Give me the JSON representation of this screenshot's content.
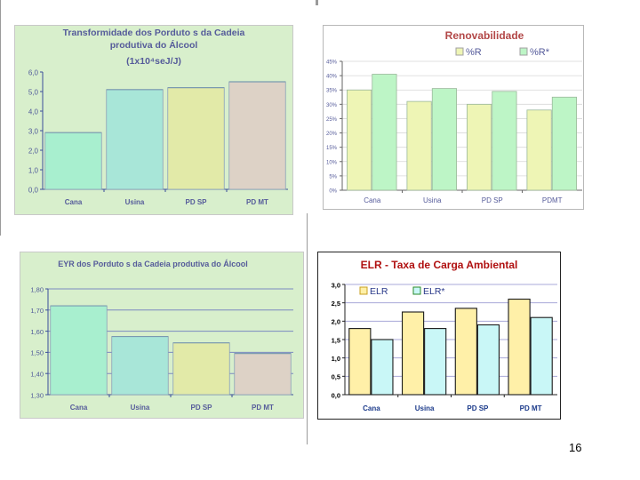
{
  "page_number": "16",
  "charts": {
    "p1": {
      "title_lines": [
        "Transformidade  dos Porduto s da Cadeia",
        "produtiva do Álcool",
        "(1x10⁴seJ/J)"
      ],
      "y_ticks": [
        "6,0",
        "5,0",
        "4,0",
        "3,0",
        "2,0",
        "1,0",
        "0,0"
      ],
      "categories": [
        "Cana",
        "Usina",
        "PD SP",
        "PD MT"
      ]
    },
    "p2": {
      "title_lines": [
        "Renovabilidade"
      ],
      "legend": [
        "%R",
        "%R*"
      ],
      "y_ticks": [
        "45%",
        "40%",
        "35%",
        "30%",
        "25%",
        "20%",
        "15%",
        "10%",
        "5%",
        "0%"
      ],
      "categories": [
        "Cana",
        "Usina",
        "PD SP",
        "PDMT"
      ]
    },
    "p3": {
      "title_lines": [
        "EYR dos  Porduto s da Cadeia produtiva do Álcool"
      ],
      "y_ticks": [
        "1,80",
        "1,70",
        "1,60",
        "1,50",
        "1,40",
        "1,30"
      ],
      "categories": [
        "Cana",
        "Usina",
        "PD SP",
        "PD MT"
      ]
    },
    "p4": {
      "title_lines": [
        "ELR - Taxa de Carga Ambiental"
      ],
      "legend": [
        "ELR",
        "ELR*"
      ],
      "y_ticks": [
        "3,0",
        "2,5",
        "2,0",
        "1,5",
        "1,0",
        "0,5",
        "0,0"
      ],
      "categories": [
        "Cana",
        "Usina",
        "PD SP",
        "PD MT"
      ]
    }
  },
  "chart_data": [
    {
      "type": "bar",
      "title": "Transformidade  dos Porduto s da Cadeia produtiva do Álcool (1x10⁴seJ/J)",
      "categories": [
        "Cana",
        "Usina",
        "PD SP",
        "PD MT"
      ],
      "values": [
        2.9,
        5.1,
        5.2,
        5.5
      ],
      "colors": [
        "#a8efcf",
        "#a8e6d8",
        "#e2eaa8",
        "#ddd2c6"
      ],
      "ylim": [
        0,
        6
      ],
      "grid": false
    },
    {
      "type": "bar",
      "title": "Renovabilidade",
      "categories": [
        "Cana",
        "Usina",
        "PD SP",
        "PDMT"
      ],
      "series": [
        {
          "name": "%R",
          "values": [
            35,
            31,
            30,
            28
          ],
          "color": "#eef5b5"
        },
        {
          "name": "%R*",
          "values": [
            40.5,
            35.5,
            34.5,
            32.5
          ],
          "color": "#bdf5c6"
        }
      ],
      "ylim": [
        0,
        45
      ],
      "grid": true
    },
    {
      "type": "bar",
      "title": "EYR dos  Porduto s da Cadeia produtiva do Álcool",
      "categories": [
        "Cana",
        "Usina",
        "PD SP",
        "PD MT"
      ],
      "values": [
        1.72,
        1.575,
        1.545,
        1.495
      ],
      "colors": [
        "#a8efcf",
        "#a8e6d8",
        "#e2eaa8",
        "#ddd2c6"
      ],
      "ylim": [
        1.3,
        1.8
      ],
      "grid": true
    },
    {
      "type": "bar",
      "title": "ELR - Taxa de Carga Ambiental",
      "categories": [
        "Cana",
        "Usina",
        "PD SP",
        "PD MT"
      ],
      "series": [
        {
          "name": "ELR",
          "values": [
            1.8,
            2.25,
            2.35,
            2.6
          ],
          "color": "#fff0a8"
        },
        {
          "name": "ELR*",
          "values": [
            1.5,
            1.8,
            1.9,
            2.1
          ],
          "color": "#c9f7f7"
        }
      ],
      "ylim": [
        0,
        3
      ],
      "grid": true
    }
  ]
}
